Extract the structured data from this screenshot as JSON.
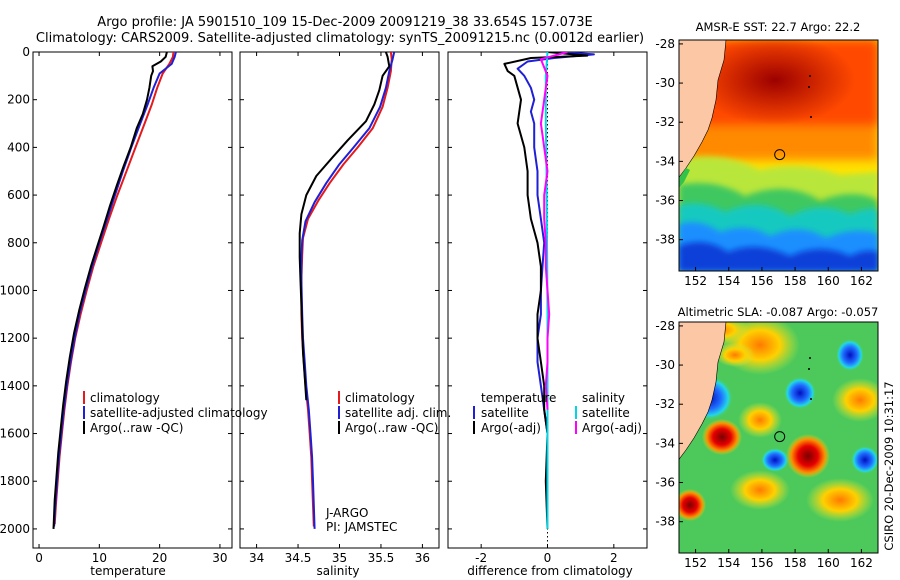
{
  "title": {
    "line1": "Argo profile: JA 5901510_109 15-Dec-2009 20091219_38 33.654S 157.073E",
    "line2": "Climatology: CARS2009. Satellite-adjusted climatology: synTS_20091215.nc (0.0012d earlier)"
  },
  "credit": "CSIRO 20-Dec-2009 10:31:17",
  "colors": {
    "climatology": "#e41a1c",
    "satellite": "#1f1fd6",
    "argo": "#000000",
    "sal_satellite": "#00d7e6",
    "sal_argo": "#ff00ff"
  },
  "chart_data": [
    {
      "type": "line",
      "name": "temperature-profile",
      "xlabel": "temperature",
      "ylabel": "",
      "xlim": [
        -1,
        32
      ],
      "ylim": [
        2080,
        0
      ],
      "xticks": [
        0,
        10,
        20,
        30
      ],
      "yticks": [
        0,
        200,
        400,
        600,
        800,
        1000,
        1200,
        1400,
        1600,
        1800,
        2000
      ],
      "legend": [
        "climatology",
        "satellite-adjusted climatology",
        "Argo(..raw -QC)"
      ],
      "legend_placement": "lower-right",
      "series": [
        {
          "name": "climatology",
          "color": "#e41a1c",
          "points": [
            [
              22.3,
              0
            ],
            [
              22.2,
              20
            ],
            [
              21.6,
              50
            ],
            [
              20.5,
              90
            ],
            [
              19.6,
              150
            ],
            [
              18.7,
              220
            ],
            [
              17.5,
              300
            ],
            [
              16.0,
              400
            ],
            [
              14.5,
              500
            ],
            [
              13.0,
              600
            ],
            [
              11.6,
              700
            ],
            [
              10.3,
              800
            ],
            [
              9.0,
              900
            ],
            [
              7.9,
              1000
            ],
            [
              6.9,
              1100
            ],
            [
              6.0,
              1200
            ],
            [
              5.3,
              1300
            ],
            [
              4.7,
              1400
            ],
            [
              4.2,
              1500
            ],
            [
              3.8,
              1600
            ],
            [
              3.4,
              1700
            ],
            [
              3.1,
              1800
            ],
            [
              2.8,
              1900
            ],
            [
              2.6,
              1980
            ]
          ]
        },
        {
          "name": "satellite-adjusted climatology",
          "color": "#1f1fd6",
          "points": [
            [
              22.7,
              0
            ],
            [
              22.5,
              20
            ],
            [
              22.0,
              50
            ],
            [
              20.0,
              90
            ],
            [
              19.0,
              150
            ],
            [
              18.0,
              220
            ],
            [
              16.8,
              300
            ],
            [
              15.3,
              400
            ],
            [
              13.9,
              500
            ],
            [
              12.6,
              600
            ],
            [
              11.3,
              700
            ],
            [
              10.0,
              800
            ],
            [
              8.8,
              900
            ],
            [
              7.7,
              1000
            ],
            [
              6.7,
              1100
            ],
            [
              5.9,
              1200
            ],
            [
              5.2,
              1300
            ],
            [
              4.6,
              1400
            ],
            [
              4.1,
              1500
            ],
            [
              3.7,
              1600
            ],
            [
              3.3,
              1700
            ],
            [
              3.0,
              1800
            ],
            [
              2.7,
              1900
            ],
            [
              2.5,
              1990
            ]
          ]
        },
        {
          "name": "Argo(..raw -QC)",
          "color": "#000000",
          "points": [
            [
              21.2,
              0
            ],
            [
              21.0,
              20
            ],
            [
              20.2,
              40
            ],
            [
              18.8,
              60
            ],
            [
              18.9,
              80
            ],
            [
              18.6,
              100
            ],
            [
              18.3,
              150
            ],
            [
              17.9,
              200
            ],
            [
              17.2,
              260
            ],
            [
              16.2,
              320
            ],
            [
              15.2,
              400
            ],
            [
              14.0,
              480
            ],
            [
              12.9,
              560
            ],
            [
              11.7,
              650
            ],
            [
              10.6,
              740
            ],
            [
              9.6,
              820
            ],
            [
              8.6,
              900
            ],
            [
              7.6,
              990
            ],
            [
              6.7,
              1080
            ],
            [
              5.8,
              1180
            ],
            [
              5.1,
              1280
            ],
            [
              4.5,
              1380
            ],
            [
              4.0,
              1480
            ],
            [
              3.6,
              1580
            ],
            [
              3.2,
              1680
            ],
            [
              2.9,
              1780
            ],
            [
              2.6,
              1880
            ],
            [
              2.4,
              2000
            ]
          ]
        }
      ]
    },
    {
      "type": "line",
      "name": "salinity-profile",
      "xlabel": "salinity",
      "xlim": [
        33.8,
        36.2
      ],
      "ylim": [
        2080,
        0
      ],
      "xticks": [
        34,
        34.5,
        35,
        35.5,
        36
      ],
      "legend": [
        "climatology",
        "satellite adj. clim.",
        "Argo(..raw -QC)"
      ],
      "legend_placement": "lower-right",
      "annotation": [
        "J-ARGO",
        "PI: JAMSTEC"
      ],
      "series": [
        {
          "name": "climatology",
          "color": "#e41a1c",
          "points": [
            [
              35.62,
              0
            ],
            [
              35.63,
              30
            ],
            [
              35.62,
              80
            ],
            [
              35.58,
              150
            ],
            [
              35.52,
              230
            ],
            [
              35.4,
              320
            ],
            [
              35.22,
              400
            ],
            [
              35.05,
              470
            ],
            [
              34.88,
              550
            ],
            [
              34.75,
              620
            ],
            [
              34.62,
              700
            ],
            [
              34.56,
              780
            ],
            [
              34.55,
              850
            ],
            [
              34.54,
              950
            ],
            [
              34.54,
              1100
            ],
            [
              34.55,
              1200
            ],
            [
              34.57,
              1300
            ],
            [
              34.59,
              1400
            ],
            [
              34.62,
              1500
            ],
            [
              34.64,
              1600
            ],
            [
              34.66,
              1700
            ],
            [
              34.67,
              1800
            ],
            [
              34.68,
              1900
            ],
            [
              34.69,
              1990
            ]
          ]
        },
        {
          "name": "satellite adj. clim.",
          "color": "#1f1fd6",
          "points": [
            [
              35.66,
              0
            ],
            [
              35.64,
              30
            ],
            [
              35.6,
              80
            ],
            [
              35.56,
              150
            ],
            [
              35.49,
              230
            ],
            [
              35.36,
              320
            ],
            [
              35.17,
              400
            ],
            [
              35.0,
              470
            ],
            [
              34.84,
              550
            ],
            [
              34.7,
              630
            ],
            [
              34.59,
              710
            ],
            [
              34.55,
              790
            ],
            [
              34.54,
              860
            ],
            [
              34.54,
              960
            ],
            [
              34.55,
              1100
            ],
            [
              34.56,
              1200
            ],
            [
              34.58,
              1300
            ],
            [
              34.6,
              1400
            ],
            [
              34.63,
              1500
            ],
            [
              34.65,
              1600
            ],
            [
              34.67,
              1700
            ],
            [
              34.68,
              1800
            ],
            [
              34.69,
              1900
            ],
            [
              34.7,
              2000
            ]
          ]
        },
        {
          "name": "Argo(..raw -QC)",
          "color": "#000000",
          "points": [
            [
              35.56,
              0
            ],
            [
              35.58,
              20
            ],
            [
              35.6,
              60
            ],
            [
              35.52,
              100
            ],
            [
              35.48,
              160
            ],
            [
              35.42,
              220
            ],
            [
              35.32,
              290
            ],
            [
              35.1,
              370
            ],
            [
              34.92,
              440
            ],
            [
              34.72,
              520
            ],
            [
              34.6,
              600
            ],
            [
              34.54,
              680
            ],
            [
              34.52,
              760
            ],
            [
              34.52,
              860
            ],
            [
              34.53,
              960
            ],
            [
              34.54,
              1060
            ],
            [
              34.55,
              1160
            ],
            [
              34.56,
              1260
            ],
            [
              34.58,
              1360
            ],
            [
              34.6,
              1460
            ]
          ]
        }
      ]
    },
    {
      "type": "line",
      "name": "difference-from-climatology",
      "xlabel": "difference from climatology",
      "xlim": [
        -3,
        3
      ],
      "ylim": [
        2080,
        0
      ],
      "xticks": [
        -2,
        0,
        2
      ],
      "legend_temperature": [
        "temperature",
        "satellite",
        "Argo(-adj)"
      ],
      "legend_salinity": [
        "salinity",
        "satellite",
        "Argo(-adj)"
      ],
      "legend_placement": "lower-center",
      "series": [
        {
          "name": "temperature satellite",
          "color": "#1f1fd6",
          "points": [
            [
              0.4,
              0
            ],
            [
              1.4,
              10
            ],
            [
              0.2,
              25
            ],
            [
              -0.6,
              40
            ],
            [
              -0.9,
              70
            ],
            [
              -0.7,
              100
            ],
            [
              -0.5,
              150
            ],
            [
              -0.4,
              200
            ],
            [
              -0.5,
              250
            ],
            [
              -0.4,
              300
            ],
            [
              -0.4,
              400
            ],
            [
              -0.3,
              500
            ],
            [
              -0.3,
              600
            ],
            [
              -0.2,
              700
            ],
            [
              -0.1,
              800
            ],
            [
              -0.15,
              900
            ],
            [
              -0.2,
              1000
            ],
            [
              -0.2,
              1100
            ],
            [
              -0.3,
              1200
            ],
            [
              -0.3,
              1300
            ],
            [
              -0.2,
              1400
            ],
            [
              -0.1,
              1500
            ],
            [
              0.0,
              1600
            ],
            [
              0.0,
              1800
            ],
            [
              0.0,
              2000
            ]
          ]
        },
        {
          "name": "temperature Argo(-adj)",
          "color": "#000000",
          "points": [
            [
              0.0,
              0
            ],
            [
              1.2,
              15
            ],
            [
              -0.5,
              25
            ],
            [
              -1.3,
              50
            ],
            [
              -1.2,
              80
            ],
            [
              -1.0,
              100
            ],
            [
              -0.8,
              200
            ],
            [
              -0.9,
              300
            ],
            [
              -0.7,
              400
            ],
            [
              -0.6,
              500
            ],
            [
              -0.6,
              600
            ],
            [
              -0.5,
              700
            ],
            [
              -0.3,
              800
            ],
            [
              -0.2,
              900
            ],
            [
              -0.2,
              1000
            ],
            [
              -0.3,
              1100
            ],
            [
              -0.3,
              1200
            ],
            [
              -0.2,
              1300
            ],
            [
              -0.1,
              1400
            ],
            [
              -0.1,
              1500
            ],
            [
              0.0,
              1600
            ],
            [
              -0.05,
              1800
            ],
            [
              0.0,
              2000
            ]
          ]
        },
        {
          "name": "salinity satellite",
          "color": "#00d7e6",
          "points": [
            [
              0.0,
              0
            ],
            [
              -0.05,
              100
            ],
            [
              -0.05,
              300
            ],
            [
              -0.03,
              500
            ],
            [
              -0.02,
              700
            ],
            [
              -0.01,
              900
            ],
            [
              0.0,
              1100
            ],
            [
              0.0,
              1400
            ],
            [
              0.0,
              1700
            ],
            [
              0.0,
              2000
            ]
          ]
        },
        {
          "name": "salinity Argo(-adj)",
          "color": "#ff00ff",
          "points": [
            [
              0.6,
              0
            ],
            [
              -0.2,
              30
            ],
            [
              0.0,
              100
            ],
            [
              -0.1,
              200
            ],
            [
              -0.2,
              300
            ],
            [
              -0.1,
              400
            ],
            [
              0.0,
              500
            ],
            [
              -0.1,
              600
            ],
            [
              -0.1,
              700
            ],
            [
              -0.05,
              800
            ],
            [
              -0.05,
              900
            ],
            [
              0.0,
              1000
            ],
            [
              0.05,
              1100
            ],
            [
              0.0,
              1200
            ],
            [
              0.0,
              1300
            ],
            [
              -0.05,
              1400
            ],
            [
              0.0,
              1500
            ]
          ]
        }
      ]
    }
  ],
  "maps": [
    {
      "title": "AMSR-E SST: 22.7 Argo: 22.2",
      "x_ticks": [
        152,
        154,
        156,
        158,
        160,
        162
      ],
      "y_ticks": [
        -28,
        -30,
        -32,
        -34,
        -36,
        -38
      ],
      "lon_range": [
        151,
        163
      ],
      "lat_range": [
        -39.6,
        -27.8
      ],
      "argo_position": [
        157.073,
        -33.654
      ]
    },
    {
      "title": "Altimetric SLA: -0.087 Argo: -0.057",
      "x_ticks": [
        152,
        154,
        156,
        158,
        160,
        162
      ],
      "y_ticks": [
        -28,
        -30,
        -32,
        -34,
        -36,
        -38
      ],
      "lon_range": [
        151,
        163
      ],
      "lat_range": [
        -39.6,
        -27.8
      ],
      "argo_position": [
        157.073,
        -33.654
      ]
    }
  ]
}
